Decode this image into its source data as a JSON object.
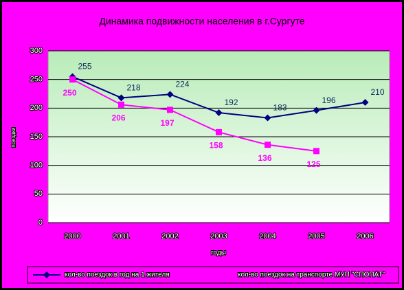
{
  "chart_data": {
    "type": "line",
    "title": "Динамика подвижности населения в г.Сургуте",
    "x_label": "годы",
    "y_label": "поездки",
    "categories": [
      "2000",
      "2001",
      "2002",
      "2003",
      "2004",
      "2005",
      "2006"
    ],
    "series": [
      {
        "name": "кол-во поездок в год на 1 жителя",
        "color": "#000080",
        "marker": "diamond",
        "values": [
          255,
          218,
          224,
          192,
          183,
          196,
          210
        ]
      },
      {
        "name": "кол-во поездок на транспорте МУП \"СПОПАТ\"",
        "color": "#ff00ff",
        "marker": "square",
        "values": [
          250,
          206,
          197,
          158,
          136,
          125,
          null
        ]
      }
    ],
    "ylim": [
      0,
      300
    ],
    "yticks": [
      0,
      50,
      100,
      150,
      200,
      250,
      300
    ],
    "grid": true
  }
}
